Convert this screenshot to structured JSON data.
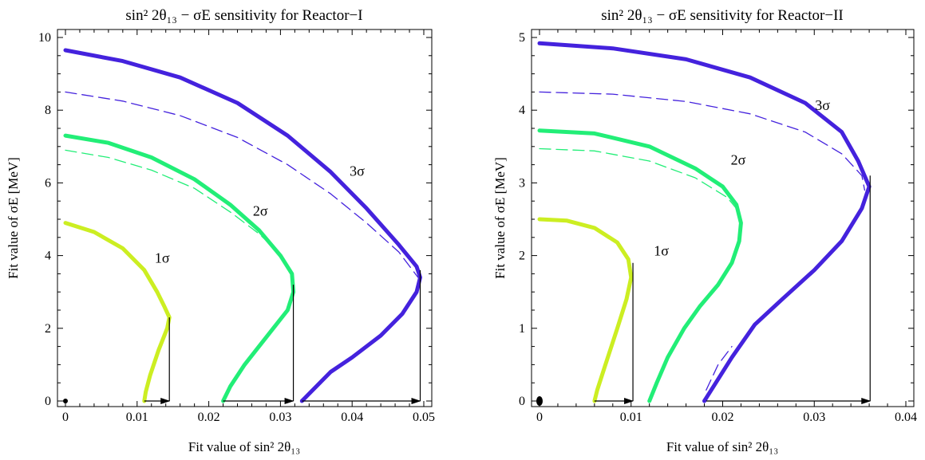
{
  "chart_data": [
    {
      "type": "line",
      "title": "sin² 2θ₁₃ − σE sensitivity for Reactor−I",
      "xlabel": "Fit value of sin² 2θ₁₃",
      "ylabel": "Fit value of σE [MeV]",
      "xlim": [
        0,
        0.05
      ],
      "ylim": [
        0,
        10
      ],
      "x_ticks": [
        "0",
        "0.01",
        "0.02",
        "0.03",
        "0.04",
        "0.05"
      ],
      "y_ticks": [
        "0",
        "2",
        "4",
        "6",
        "8",
        "10"
      ],
      "best_fit_point": [
        0,
        0
      ],
      "series": [
        {
          "name": "1σ",
          "color": "#ccee22",
          "style": "solid",
          "points": [
            [
              0.0,
              4.9
            ],
            [
              0.004,
              4.65
            ],
            [
              0.008,
              4.2
            ],
            [
              0.011,
              3.6
            ],
            [
              0.0128,
              3.0
            ],
            [
              0.0138,
              2.6
            ],
            [
              0.0145,
              2.3
            ],
            [
              0.0142,
              2.0
            ],
            [
              0.013,
              1.4
            ],
            [
              0.0118,
              0.7
            ],
            [
              0.0112,
              0.25
            ],
            [
              0.011,
              0.0
            ]
          ]
        },
        {
          "name": "2σ",
          "color": "#22ee77",
          "style": "solid",
          "points": [
            [
              0.0,
              7.3
            ],
            [
              0.006,
              7.1
            ],
            [
              0.012,
              6.7
            ],
            [
              0.018,
              6.1
            ],
            [
              0.023,
              5.4
            ],
            [
              0.027,
              4.7
            ],
            [
              0.03,
              4.0
            ],
            [
              0.0316,
              3.5
            ],
            [
              0.0318,
              3.0
            ],
            [
              0.031,
              2.5
            ],
            [
              0.029,
              2.0
            ],
            [
              0.027,
              1.5
            ],
            [
              0.025,
              1.0
            ],
            [
              0.023,
              0.4
            ],
            [
              0.022,
              0.0
            ]
          ]
        },
        {
          "name": "3σ",
          "color": "#4422dd",
          "style": "solid",
          "points": [
            [
              0.0,
              9.65
            ],
            [
              0.008,
              9.35
            ],
            [
              0.016,
              8.9
            ],
            [
              0.024,
              8.2
            ],
            [
              0.031,
              7.3
            ],
            [
              0.037,
              6.3
            ],
            [
              0.042,
              5.3
            ],
            [
              0.0465,
              4.3
            ],
            [
              0.049,
              3.7
            ],
            [
              0.0495,
              3.4
            ],
            [
              0.049,
              3.0
            ],
            [
              0.047,
              2.4
            ],
            [
              0.044,
              1.8
            ],
            [
              0.04,
              1.2
            ],
            [
              0.037,
              0.8
            ],
            [
              0.034,
              0.2
            ],
            [
              0.033,
              0.0
            ]
          ]
        },
        {
          "name": "",
          "color": "#22ee77",
          "style": "dashed",
          "points": [
            [
              0.0,
              6.9
            ],
            [
              0.006,
              6.7
            ],
            [
              0.012,
              6.35
            ],
            [
              0.018,
              5.85
            ],
            [
              0.023,
              5.2
            ],
            [
              0.027,
              4.6
            ],
            [
              0.0302,
              4.0
            ],
            [
              0.0316,
              3.4
            ]
          ]
        },
        {
          "name": "",
          "color": "#4422dd",
          "style": "dashed",
          "points": [
            [
              0.0,
              8.5
            ],
            [
              0.008,
              8.25
            ],
            [
              0.016,
              7.85
            ],
            [
              0.024,
              7.25
            ],
            [
              0.031,
              6.5
            ],
            [
              0.037,
              5.7
            ],
            [
              0.042,
              4.9
            ],
            [
              0.0465,
              4.1
            ],
            [
              0.0492,
              3.4
            ]
          ]
        }
      ],
      "arrows": [
        {
          "x_from": 0.011,
          "x_to": 0.0145,
          "y": 0.0,
          "vline_top": 2.3
        },
        {
          "x_from": 0.022,
          "x_to": 0.0318,
          "y": 0.0,
          "vline_top": 3.2
        },
        {
          "x_from": 0.033,
          "x_to": 0.0495,
          "y": 0.0,
          "vline_top": 3.6
        }
      ],
      "labels": [
        {
          "text": "1σ",
          "x": 0.0135,
          "y": 3.8
        },
        {
          "text": "2σ",
          "x": 0.0272,
          "y": 5.1
        },
        {
          "text": "3σ",
          "x": 0.0407,
          "y": 6.2
        }
      ]
    },
    {
      "type": "line",
      "title": "sin² 2θ₁₃ − σE sensitivity for Reactor−II",
      "xlabel": "Fit value of sin² 2θ₁₃",
      "ylabel": "Fit value of σE [MeV]",
      "xlim": [
        0,
        0.04
      ],
      "ylim": [
        0,
        5
      ],
      "x_ticks": [
        "0",
        "0.01",
        "0.02",
        "0.03",
        "0.04"
      ],
      "y_ticks": [
        "0",
        "1",
        "2",
        "3",
        "4",
        "5"
      ],
      "best_fit_point": [
        0,
        0
      ],
      "series": [
        {
          "name": "1σ",
          "color": "#ccee22",
          "style": "solid",
          "points": [
            [
              0.0,
              2.5
            ],
            [
              0.003,
              2.48
            ],
            [
              0.006,
              2.38
            ],
            [
              0.0085,
              2.18
            ],
            [
              0.0097,
              1.95
            ],
            [
              0.01,
              1.7
            ],
            [
              0.0095,
              1.4
            ],
            [
              0.0085,
              1.0
            ],
            [
              0.0072,
              0.5
            ],
            [
              0.0063,
              0.15
            ],
            [
              0.006,
              0.0
            ]
          ]
        },
        {
          "name": "2σ",
          "color": "#22ee77",
          "style": "solid",
          "points": [
            [
              0.0,
              3.72
            ],
            [
              0.006,
              3.68
            ],
            [
              0.012,
              3.5
            ],
            [
              0.017,
              3.2
            ],
            [
              0.02,
              2.95
            ],
            [
              0.0215,
              2.7
            ],
            [
              0.022,
              2.45
            ],
            [
              0.0218,
              2.2
            ],
            [
              0.021,
              1.9
            ],
            [
              0.0195,
              1.6
            ],
            [
              0.0175,
              1.3
            ],
            [
              0.0158,
              1.0
            ],
            [
              0.014,
              0.6
            ],
            [
              0.0128,
              0.25
            ],
            [
              0.012,
              0.0
            ]
          ]
        },
        {
          "name": "3σ",
          "color": "#4422dd",
          "style": "solid",
          "points": [
            [
              0.0,
              4.92
            ],
            [
              0.008,
              4.85
            ],
            [
              0.016,
              4.7
            ],
            [
              0.023,
              4.45
            ],
            [
              0.029,
              4.1
            ],
            [
              0.033,
              3.7
            ],
            [
              0.0348,
              3.3
            ],
            [
              0.036,
              2.95
            ],
            [
              0.0352,
              2.65
            ],
            [
              0.033,
              2.2
            ],
            [
              0.03,
              1.8
            ],
            [
              0.0265,
              1.4
            ],
            [
              0.0235,
              1.05
            ],
            [
              0.021,
              0.6
            ],
            [
              0.019,
              0.2
            ],
            [
              0.018,
              0.0
            ]
          ]
        },
        {
          "name": "",
          "color": "#22ee77",
          "style": "dashed",
          "points": [
            [
              0.0,
              3.47
            ],
            [
              0.006,
              3.44
            ],
            [
              0.012,
              3.3
            ],
            [
              0.017,
              3.07
            ],
            [
              0.0205,
              2.8
            ],
            [
              0.0218,
              2.6
            ]
          ]
        },
        {
          "name": "",
          "color": "#4422dd",
          "style": "dashed",
          "points": [
            [
              0.0,
              4.25
            ],
            [
              0.008,
              4.22
            ],
            [
              0.016,
              4.12
            ],
            [
              0.023,
              3.95
            ],
            [
              0.029,
              3.7
            ],
            [
              0.033,
              3.4
            ],
            [
              0.0352,
              3.1
            ],
            [
              0.0355,
              2.9
            ]
          ]
        },
        {
          "name": "",
          "color": "#4422dd",
          "style": "dashed",
          "points": [
            [
              0.0182,
              0.15
            ],
            [
              0.0195,
              0.5
            ],
            [
              0.021,
              0.75
            ]
          ]
        }
      ],
      "arrows": [
        {
          "x_from": 0.006,
          "x_to": 0.0102,
          "y": 0.0,
          "vline_top": 1.9
        },
        {
          "x_from": 0.0182,
          "x_to": 0.0361,
          "y": 0.0,
          "vline_top": 3.1
        }
      ],
      "labels": [
        {
          "text": "1σ",
          "x": 0.0133,
          "y": 2.0
        },
        {
          "text": "2σ",
          "x": 0.0217,
          "y": 3.25
        },
        {
          "text": "3σ",
          "x": 0.0309,
          "y": 4.0
        }
      ]
    }
  ]
}
